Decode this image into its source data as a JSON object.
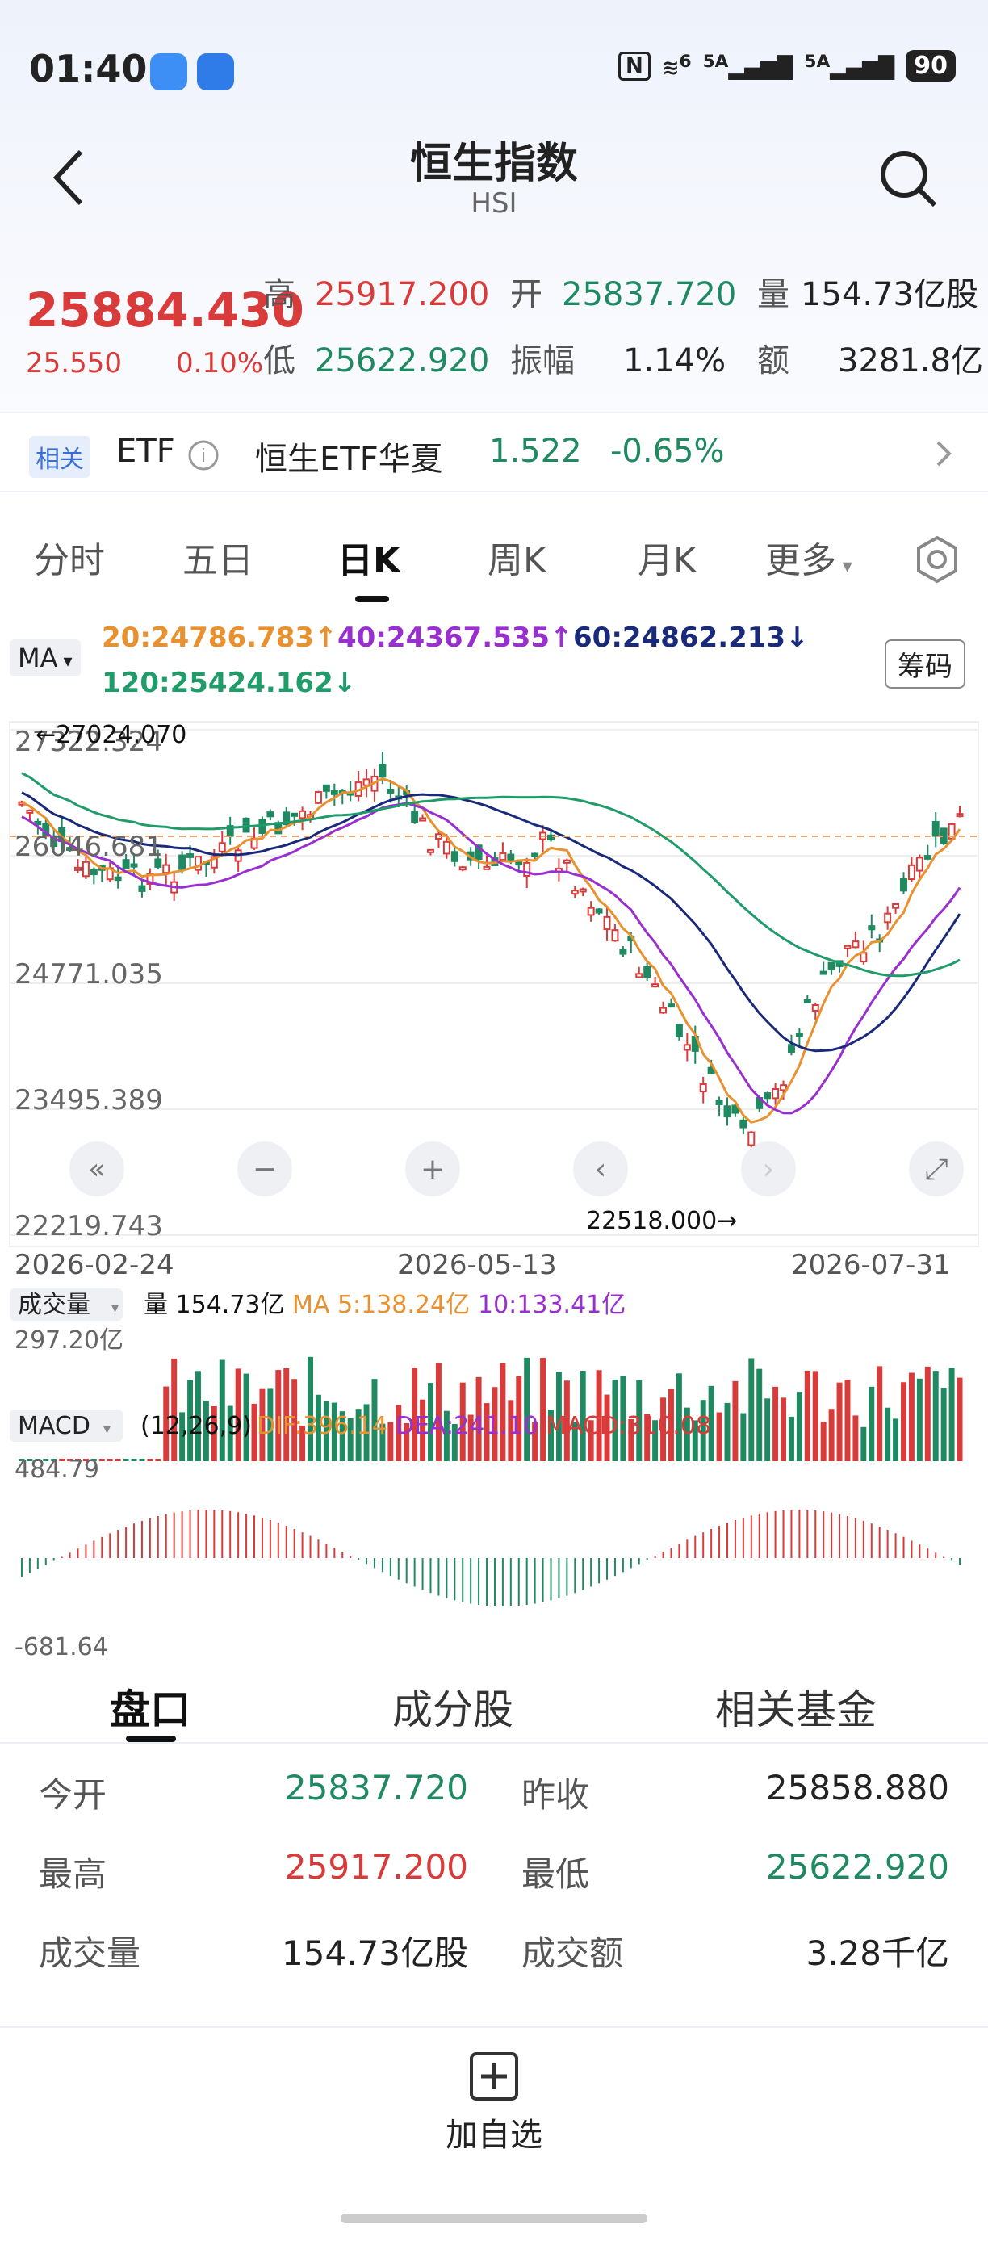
{
  "status_bar": {
    "time": "01:40",
    "signal1": "5A",
    "signal2": "5A",
    "battery": "90",
    "wifi": "6"
  },
  "header": {
    "title": "恒生指数",
    "subtitle": "HSI"
  },
  "quote": {
    "price": "25884.430",
    "change": "25.550",
    "change_pct": "0.10%",
    "high_label": "高",
    "high": "25917.200",
    "open_label": "开",
    "open": "25837.720",
    "vol_label": "量",
    "vol": "154.73亿股",
    "low_label": "低",
    "low": "25622.920",
    "amp_label": "振幅",
    "amp": "1.14%",
    "amt_label": "额",
    "amt": "3281.8亿"
  },
  "etf": {
    "tag": "相关",
    "type": "ETF",
    "name": "恒生ETF华夏",
    "price": "1.522",
    "change": "-0.65%"
  },
  "tabs": [
    "分时",
    "五日",
    "日K",
    "周K",
    "月K",
    "更多"
  ],
  "active_tab": "日K",
  "ma": {
    "button": "MA",
    "ma20": "20:24786.783↑",
    "ma40": "40:24367.535↑",
    "ma60": "60:24862.213↓",
    "ma120": "120:25424.162↓",
    "chip": "筹码"
  },
  "kline": {
    "y_labels": [
      "27322.324",
      "26046.681",
      "24771.035",
      "23495.389",
      "22219.743"
    ],
    "high_marker": "←27024.070",
    "low_marker": "22518.000→",
    "x_labels": [
      "2026-02-24",
      "2026-05-13",
      "2026-07-31"
    ],
    "ref_price": 25858.88
  },
  "volume": {
    "button": "成交量",
    "vol": "量 154.73亿",
    "ma5": "MA 5:138.24亿",
    "ma10": "10:133.41亿",
    "ymax": "297.20亿"
  },
  "macd": {
    "button": "MACD",
    "params": "(12,26,9)",
    "dif": "DIF:396.14",
    "dea": "DEA:241.10",
    "macd": "MACD:310.08",
    "ymax": "484.79",
    "ymin": "-681.64"
  },
  "bottom_tabs": [
    "盘口",
    "成分股",
    "相关基金"
  ],
  "detail": {
    "open_k": "今开",
    "open_v": "25837.720",
    "prev_k": "昨收",
    "prev_v": "25858.880",
    "high_k": "最高",
    "high_v": "25917.200",
    "low_k": "最低",
    "low_v": "25622.920",
    "vol_k": "成交量",
    "vol_v": "154.73亿股",
    "amt_k": "成交额",
    "amt_v": "3.28千亿"
  },
  "footer": {
    "add_label": "加自选"
  },
  "colors": {
    "up": "#d93a3a",
    "down": "#1f8a62",
    "ma20": "#e8912e",
    "ma40": "#9a2fd0",
    "ma60": "#1a2a7a",
    "ma120": "#1f9c6a"
  }
}
